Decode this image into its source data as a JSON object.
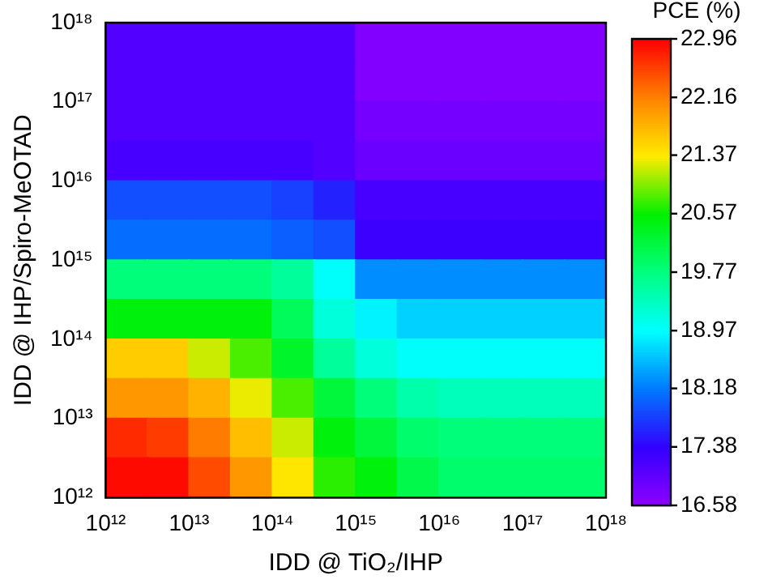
{
  "chart_data": {
    "type": "heatmap",
    "xlabel": "IDD @ TiO₂/IHP",
    "ylabel": "IDD @ IHP/Spiro-MeOTAD",
    "clabel": "PCE (%)",
    "log": "xy",
    "xlim": [
      1000000000000.0,
      1e+18
    ],
    "ylim": [
      1000000000000.0,
      1e+18
    ],
    "xticks": [
      {
        "value": 1000000000000.0,
        "label": "10¹²"
      },
      {
        "value": 10000000000000.0,
        "label": "10¹³"
      },
      {
        "value": 100000000000000.0,
        "label": "10¹⁴"
      },
      {
        "value": 1000000000000000.0,
        "label": "10¹⁵"
      },
      {
        "value": 1e+16,
        "label": "10¹⁶"
      },
      {
        "value": 1e+17,
        "label": "10¹⁷"
      },
      {
        "value": 1e+18,
        "label": "10¹⁸"
      }
    ],
    "yticks": [
      {
        "value": 1000000000000.0,
        "label": "10¹²"
      },
      {
        "value": 10000000000000.0,
        "label": "10¹³"
      },
      {
        "value": 100000000000000.0,
        "label": "10¹⁴"
      },
      {
        "value": 1000000000000000.0,
        "label": "10¹⁵"
      },
      {
        "value": 1e+16,
        "label": "10¹⁶"
      },
      {
        "value": 1e+17,
        "label": "10¹⁷"
      },
      {
        "value": 1e+18,
        "label": "10¹⁸"
      }
    ],
    "cells": [
      [
        17.1,
        17.1,
        17.1,
        17.1,
        17.1,
        17.1,
        16.7,
        16.7,
        16.7,
        16.7,
        16.7,
        16.7
      ],
      [
        17.1,
        17.1,
        17.1,
        17.1,
        17.1,
        17.1,
        16.7,
        16.7,
        16.7,
        16.7,
        16.7,
        16.7
      ],
      [
        17.1,
        17.1,
        17.1,
        17.1,
        17.1,
        17.1,
        16.8,
        16.8,
        16.8,
        16.8,
        16.8,
        16.8
      ],
      [
        17.2,
        17.2,
        17.2,
        17.2,
        17.2,
        17.1,
        16.9,
        16.9,
        16.9,
        16.9,
        16.9,
        16.9
      ],
      [
        17.9,
        17.9,
        17.9,
        17.9,
        17.8,
        17.6,
        17.2,
        17.2,
        17.2,
        17.2,
        17.2,
        17.2
      ],
      [
        18.1,
        18.1,
        18.1,
        18.1,
        18.0,
        17.9,
        17.3,
        17.3,
        17.3,
        17.3,
        17.3,
        17.3
      ],
      [
        19.8,
        19.8,
        19.8,
        19.8,
        19.6,
        19.0,
        18.3,
        18.3,
        18.3,
        18.3,
        18.3,
        18.3
      ],
      [
        20.5,
        20.5,
        20.5,
        20.5,
        20.0,
        19.2,
        18.9,
        18.7,
        18.7,
        18.7,
        18.7,
        18.7
      ],
      [
        21.6,
        21.6,
        21.2,
        20.8,
        20.3,
        19.6,
        19.2,
        19.0,
        19.0,
        19.0,
        19.0,
        19.0
      ],
      [
        22.0,
        22.0,
        21.8,
        21.3,
        20.8,
        20.2,
        19.8,
        19.5,
        19.4,
        19.4,
        19.4,
        19.4
      ],
      [
        22.7,
        22.6,
        22.2,
        21.7,
        21.2,
        20.5,
        20.2,
        19.9,
        19.8,
        19.8,
        19.8,
        19.8
      ],
      [
        22.9,
        22.9,
        22.5,
        22.0,
        21.4,
        20.7,
        20.5,
        20.1,
        19.9,
        19.9,
        19.9,
        19.9
      ]
    ],
    "clim": [
      16.58,
      22.96
    ],
    "cticks": [
      16.58,
      17.38,
      18.18,
      18.97,
      19.77,
      20.57,
      21.37,
      22.16,
      22.96
    ]
  }
}
